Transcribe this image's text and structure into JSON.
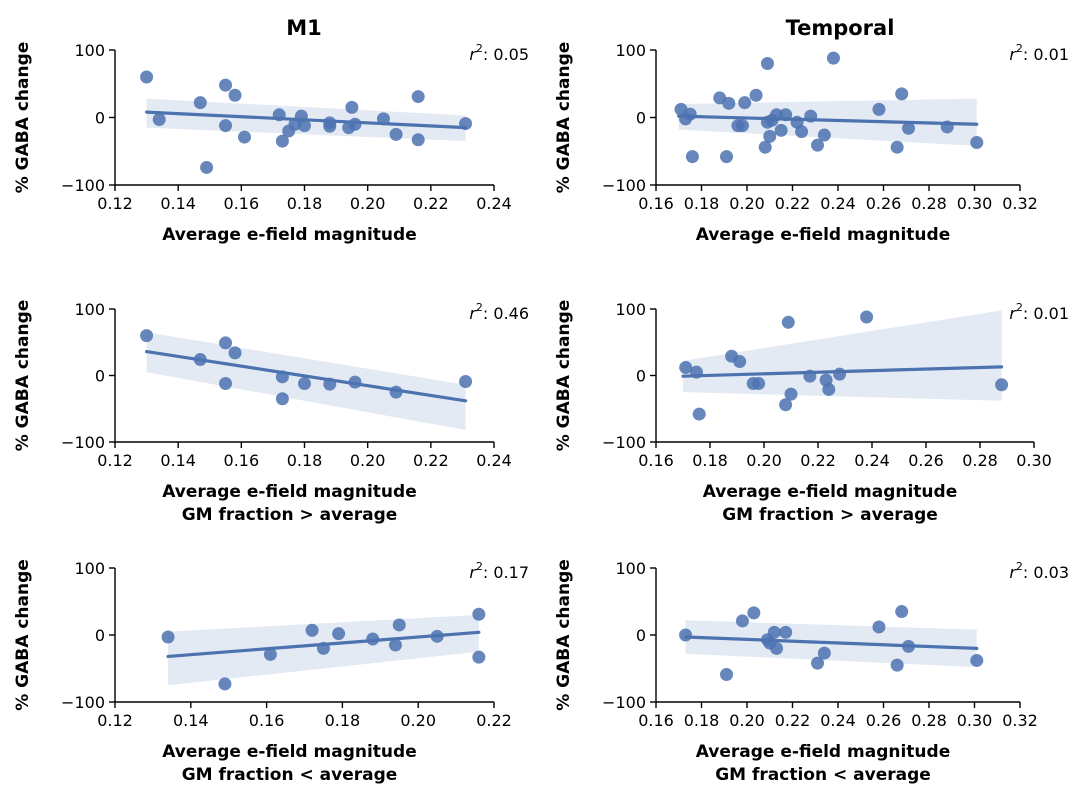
{
  "column_titles": [
    "M1",
    "Temporal"
  ],
  "chart_data": [
    {
      "type": "scatter",
      "column": "M1",
      "xlabel": [
        "Average e-field magnitude"
      ],
      "ylabel": "% GABA change",
      "xlim": [
        0.12,
        0.24
      ],
      "ylim": [
        -100,
        100
      ],
      "xticks": [
        0.12,
        0.14,
        0.16,
        0.18,
        0.2,
        0.22,
        0.24
      ],
      "yticks": [
        -100,
        0,
        100
      ],
      "r2": "0.05",
      "fit": {
        "x": [
          0.13,
          0.231
        ],
        "y": [
          8,
          -15
        ],
        "ci_lo": [
          -15,
          -35
        ],
        "ci_hi": [
          28,
          3
        ]
      },
      "points": [
        [
          0.13,
          60
        ],
        [
          0.134,
          -3
        ],
        [
          0.147,
          22
        ],
        [
          0.149,
          -74
        ],
        [
          0.155,
          48
        ],
        [
          0.155,
          -12
        ],
        [
          0.158,
          33
        ],
        [
          0.161,
          -29
        ],
        [
          0.172,
          4
        ],
        [
          0.173,
          -35
        ],
        [
          0.175,
          -20
        ],
        [
          0.177,
          -10
        ],
        [
          0.179,
          2
        ],
        [
          0.18,
          -12
        ],
        [
          0.188,
          -8
        ],
        [
          0.188,
          -13
        ],
        [
          0.194,
          -15
        ],
        [
          0.195,
          15
        ],
        [
          0.196,
          -10
        ],
        [
          0.205,
          -2
        ],
        [
          0.209,
          -25
        ],
        [
          0.216,
          31
        ],
        [
          0.216,
          -33
        ],
        [
          0.231,
          -9
        ]
      ]
    },
    {
      "type": "scatter",
      "column": "Temporal",
      "xlabel": [
        "Average e-field magnitude"
      ],
      "ylabel": "% GABA change",
      "xlim": [
        0.16,
        0.32
      ],
      "ylim": [
        -100,
        100
      ],
      "xticks": [
        0.16,
        0.18,
        0.2,
        0.22,
        0.24,
        0.26,
        0.28,
        0.3,
        0.32
      ],
      "yticks": [
        -100,
        0,
        100
      ],
      "r2": "0.01",
      "fit": {
        "x": [
          0.17,
          0.301
        ],
        "y": [
          2,
          -10
        ],
        "ci_lo": [
          -18,
          -42
        ],
        "ci_hi": [
          20,
          28
        ]
      },
      "points": [
        [
          0.171,
          12
        ],
        [
          0.173,
          -2
        ],
        [
          0.175,
          5
        ],
        [
          0.176,
          -58
        ],
        [
          0.188,
          29
        ],
        [
          0.191,
          -58
        ],
        [
          0.192,
          21
        ],
        [
          0.196,
          -12
        ],
        [
          0.198,
          -12
        ],
        [
          0.199,
          22
        ],
        [
          0.204,
          33
        ],
        [
          0.208,
          -44
        ],
        [
          0.209,
          80
        ],
        [
          0.209,
          -7
        ],
        [
          0.21,
          -28
        ],
        [
          0.211,
          -4
        ],
        [
          0.213,
          4
        ],
        [
          0.215,
          -19
        ],
        [
          0.217,
          4
        ],
        [
          0.222,
          -7
        ],
        [
          0.224,
          -21
        ],
        [
          0.228,
          2
        ],
        [
          0.231,
          -41
        ],
        [
          0.234,
          -26
        ],
        [
          0.238,
          88
        ],
        [
          0.258,
          12
        ],
        [
          0.266,
          -44
        ],
        [
          0.268,
          35
        ],
        [
          0.271,
          -16
        ],
        [
          0.288,
          -14
        ],
        [
          0.301,
          -37
        ]
      ]
    },
    {
      "type": "scatter",
      "column": "M1",
      "xlabel": [
        "Average e-field magnitude",
        "GM fraction > average"
      ],
      "ylabel": "% GABA change",
      "xlim": [
        0.12,
        0.24
      ],
      "ylim": [
        -100,
        100
      ],
      "xticks": [
        0.12,
        0.14,
        0.16,
        0.18,
        0.2,
        0.22,
        0.24
      ],
      "yticks": [
        -100,
        0,
        100
      ],
      "r2": "0.46",
      "fit": {
        "x": [
          0.13,
          0.231
        ],
        "y": [
          36,
          -38
        ],
        "ci_lo": [
          5,
          -82
        ],
        "ci_hi": [
          65,
          -14
        ]
      },
      "points": [
        [
          0.13,
          60
        ],
        [
          0.147,
          24
        ],
        [
          0.155,
          49
        ],
        [
          0.155,
          -12
        ],
        [
          0.158,
          34
        ],
        [
          0.173,
          -2
        ],
        [
          0.173,
          -35
        ],
        [
          0.18,
          -12
        ],
        [
          0.188,
          -13
        ],
        [
          0.196,
          -10
        ],
        [
          0.209,
          -25
        ],
        [
          0.231,
          -9
        ]
      ]
    },
    {
      "type": "scatter",
      "column": "Temporal",
      "xlabel": [
        "Average e-field magnitude",
        "GM fraction > average"
      ],
      "ylabel": "% GABA change",
      "xlim": [
        0.16,
        0.3
      ],
      "ylim": [
        -100,
        100
      ],
      "xticks": [
        0.16,
        0.18,
        0.2,
        0.22,
        0.24,
        0.26,
        0.28,
        0.3
      ],
      "yticks": [
        -100,
        0,
        100
      ],
      "r2": "0.01",
      "fit": {
        "x": [
          0.17,
          0.288
        ],
        "y": [
          -1,
          13
        ],
        "ci_lo": [
          -25,
          -38
        ],
        "ci_hi": [
          22,
          98
        ]
      },
      "points": [
        [
          0.171,
          12
        ],
        [
          0.175,
          5
        ],
        [
          0.176,
          -58
        ],
        [
          0.188,
          29
        ],
        [
          0.191,
          21
        ],
        [
          0.196,
          -12
        ],
        [
          0.198,
          -12
        ],
        [
          0.208,
          -44
        ],
        [
          0.209,
          80
        ],
        [
          0.21,
          -28
        ],
        [
          0.217,
          -1
        ],
        [
          0.223,
          -7
        ],
        [
          0.224,
          -21
        ],
        [
          0.228,
          2
        ],
        [
          0.238,
          88
        ],
        [
          0.288,
          -14
        ]
      ]
    },
    {
      "type": "scatter",
      "column": "M1",
      "xlabel": [
        "Average e-field magnitude",
        "GM fraction < average"
      ],
      "ylabel": "% GABA change",
      "xlim": [
        0.12,
        0.22
      ],
      "ylim": [
        -100,
        100
      ],
      "xticks": [
        0.12,
        0.14,
        0.16,
        0.18,
        0.2,
        0.22
      ],
      "yticks": [
        -100,
        0,
        100
      ],
      "r2": "0.17",
      "fit": {
        "x": [
          0.134,
          0.216
        ],
        "y": [
          -32,
          4
        ],
        "ci_lo": [
          -75,
          -25
        ],
        "ci_hi": [
          5,
          30
        ]
      },
      "points": [
        [
          0.134,
          -3
        ],
        [
          0.149,
          -73
        ],
        [
          0.161,
          -29
        ],
        [
          0.172,
          7
        ],
        [
          0.175,
          -20
        ],
        [
          0.179,
          2
        ],
        [
          0.188,
          -6
        ],
        [
          0.194,
          -15
        ],
        [
          0.195,
          15
        ],
        [
          0.205,
          -2
        ],
        [
          0.216,
          31
        ],
        [
          0.216,
          -33
        ]
      ]
    },
    {
      "type": "scatter",
      "column": "Temporal",
      "xlabel": [
        "Average e-field magnitude",
        "GM fraction < average"
      ],
      "ylabel": "% GABA change",
      "xlim": [
        0.16,
        0.32
      ],
      "ylim": [
        -100,
        100
      ],
      "xticks": [
        0.16,
        0.18,
        0.2,
        0.22,
        0.24,
        0.26,
        0.28,
        0.3,
        0.32
      ],
      "yticks": [
        -100,
        0,
        100
      ],
      "r2": "0.03",
      "fit": {
        "x": [
          0.173,
          0.301
        ],
        "y": [
          -3,
          -20
        ],
        "ci_lo": [
          -28,
          -48
        ],
        "ci_hi": [
          22,
          8
        ]
      },
      "points": [
        [
          0.173,
          0
        ],
        [
          0.191,
          -59
        ],
        [
          0.198,
          21
        ],
        [
          0.203,
          33
        ],
        [
          0.209,
          -7
        ],
        [
          0.21,
          -12
        ],
        [
          0.212,
          4
        ],
        [
          0.213,
          -20
        ],
        [
          0.217,
          4
        ],
        [
          0.231,
          -42
        ],
        [
          0.234,
          -27
        ],
        [
          0.258,
          12
        ],
        [
          0.266,
          -45
        ],
        [
          0.268,
          35
        ],
        [
          0.271,
          -17
        ],
        [
          0.301,
          -38
        ]
      ]
    }
  ]
}
